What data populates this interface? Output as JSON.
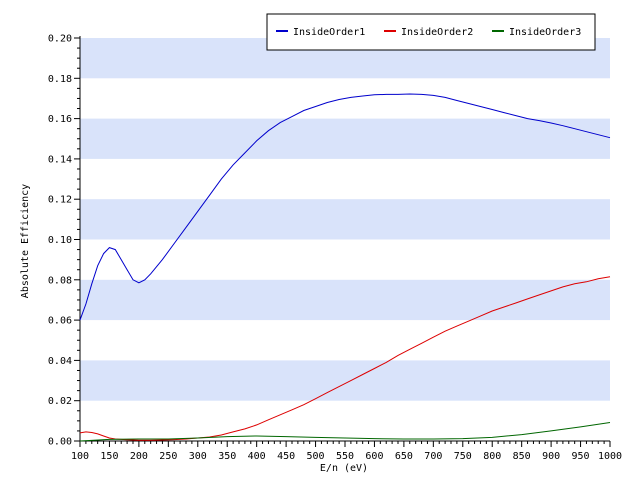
{
  "chart_data": {
    "type": "line",
    "title": "",
    "xlabel": "E/n (eV)",
    "ylabel": "Absolute Efficiency",
    "xlim": [
      100,
      1000
    ],
    "ylim": [
      0,
      0.2
    ],
    "x_ticks": [
      100,
      150,
      200,
      250,
      300,
      350,
      400,
      450,
      500,
      550,
      600,
      650,
      700,
      750,
      800,
      850,
      900,
      950,
      1000
    ],
    "y_ticks": [
      0.0,
      0.02,
      0.04,
      0.06,
      0.08,
      0.1,
      0.12,
      0.14,
      0.16,
      0.18,
      0.2
    ],
    "y_tick_labels": [
      "0.00",
      "0.02",
      "0.04",
      "0.06",
      "0.08",
      "0.10",
      "0.12",
      "0.14",
      "0.16",
      "0.18",
      "0.20"
    ],
    "grid": "alternating horizontal bands",
    "band_color": "#d9e3fa",
    "legend_position": "top-right",
    "series": [
      {
        "name": "InsideOrder1",
        "color": "#0000cc",
        "x": [
          100,
          110,
          120,
          130,
          140,
          150,
          160,
          170,
          180,
          190,
          200,
          210,
          220,
          240,
          260,
          280,
          300,
          320,
          340,
          360,
          380,
          400,
          420,
          440,
          460,
          480,
          500,
          520,
          540,
          560,
          580,
          600,
          620,
          640,
          660,
          680,
          700,
          720,
          740,
          760,
          780,
          800,
          820,
          840,
          860,
          880,
          900,
          920,
          940,
          960,
          980,
          1000
        ],
        "y": [
          0.06,
          0.068,
          0.078,
          0.087,
          0.093,
          0.096,
          0.095,
          0.09,
          0.085,
          0.08,
          0.0785,
          0.08,
          0.083,
          0.09,
          0.098,
          0.106,
          0.114,
          0.122,
          0.13,
          0.137,
          0.143,
          0.149,
          0.154,
          0.158,
          0.161,
          0.164,
          0.166,
          0.168,
          0.1695,
          0.1705,
          0.1712,
          0.1718,
          0.172,
          0.172,
          0.1722,
          0.172,
          0.1715,
          0.1705,
          0.169,
          0.1675,
          0.166,
          0.1645,
          0.163,
          0.1615,
          0.16,
          0.159,
          0.1578,
          0.1565,
          0.155,
          0.1535,
          0.152,
          0.1505
        ]
      },
      {
        "name": "InsideOrder2",
        "color": "#dd0000",
        "x": [
          100,
          110,
          120,
          130,
          140,
          150,
          160,
          180,
          200,
          220,
          240,
          260,
          280,
          300,
          320,
          340,
          360,
          380,
          400,
          420,
          440,
          460,
          480,
          500,
          520,
          540,
          560,
          580,
          600,
          620,
          640,
          660,
          680,
          700,
          720,
          740,
          760,
          780,
          800,
          820,
          840,
          860,
          880,
          900,
          920,
          940,
          960,
          980,
          1000
        ],
        "y": [
          0.004,
          0.0045,
          0.0042,
          0.0035,
          0.0025,
          0.0015,
          0.001,
          0.0006,
          0.0004,
          0.0004,
          0.0005,
          0.0007,
          0.001,
          0.0015,
          0.002,
          0.003,
          0.0045,
          0.006,
          0.008,
          0.0105,
          0.013,
          0.0155,
          0.018,
          0.021,
          0.024,
          0.027,
          0.03,
          0.033,
          0.036,
          0.039,
          0.0425,
          0.0455,
          0.0485,
          0.0515,
          0.0545,
          0.057,
          0.0595,
          0.062,
          0.0645,
          0.0665,
          0.0685,
          0.0705,
          0.0725,
          0.0745,
          0.0765,
          0.078,
          0.079,
          0.0805,
          0.0815
        ]
      },
      {
        "name": "InsideOrder3",
        "color": "#006600",
        "x": [
          100,
          150,
          200,
          250,
          300,
          350,
          400,
          450,
          500,
          550,
          600,
          650,
          700,
          750,
          800,
          850,
          900,
          950,
          1000
        ],
        "y": [
          0.0,
          0.0008,
          0.001,
          0.001,
          0.0015,
          0.0022,
          0.0025,
          0.0022,
          0.0018,
          0.0015,
          0.0012,
          0.001,
          0.001,
          0.0012,
          0.0018,
          0.0032,
          0.005,
          0.007,
          0.0092
        ]
      }
    ]
  }
}
